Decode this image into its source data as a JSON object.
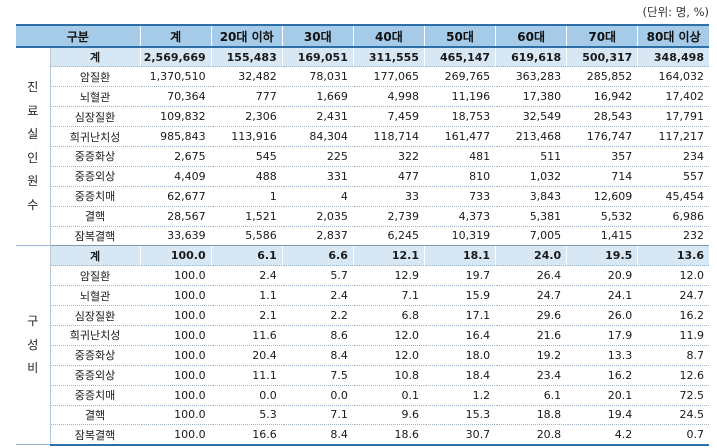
{
  "unit_note": "(단위: 명, %)",
  "headers": [
    "구분",
    "계",
    "20대 이하",
    "30대",
    "40대",
    "50대",
    "60대",
    "70대",
    "80대 이상"
  ],
  "section1": {
    "label_chars": [
      "진",
      "료",
      "실",
      "인",
      "원",
      "수"
    ],
    "rows": [
      {
        "label": "계",
        "values": [
          "2,569,669",
          "155,483",
          "169,051",
          "311,555",
          "465,147",
          "619,618",
          "500,317",
          "348,498"
        ]
      },
      {
        "label": "암질환",
        "values": [
          "1,370,510",
          "32,482",
          "78,031",
          "177,065",
          "269,765",
          "363,283",
          "285,852",
          "164,032"
        ]
      },
      {
        "label": "뇌혈관",
        "values": [
          "70,364",
          "777",
          "1,669",
          "4,998",
          "11,196",
          "17,380",
          "16,942",
          "17,402"
        ]
      },
      {
        "label": "심장질환",
        "values": [
          "109,832",
          "2,306",
          "2,431",
          "7,459",
          "18,753",
          "32,549",
          "28,543",
          "17,791"
        ]
      },
      {
        "label": "희귀난치성",
        "values": [
          "985,843",
          "113,916",
          "84,304",
          "118,714",
          "161,477",
          "213,468",
          "176,747",
          "117,217"
        ]
      },
      {
        "label": "중증화상",
        "values": [
          "2,675",
          "545",
          "225",
          "322",
          "481",
          "511",
          "357",
          "234"
        ]
      },
      {
        "label": "중증외상",
        "values": [
          "4,409",
          "488",
          "331",
          "477",
          "810",
          "1,032",
          "714",
          "557"
        ]
      },
      {
        "label": "중증치매",
        "values": [
          "62,677",
          "1",
          "4",
          "33",
          "733",
          "3,843",
          "12,609",
          "45,454"
        ]
      },
      {
        "label": "결핵",
        "values": [
          "28,567",
          "1,521",
          "2,035",
          "2,739",
          "4,373",
          "5,381",
          "5,532",
          "6,986"
        ]
      },
      {
        "label": "잠복결핵",
        "values": [
          "33,639",
          "5,586",
          "2,837",
          "6,245",
          "10,319",
          "7,005",
          "1,415",
          "232"
        ]
      }
    ]
  },
  "section2": {
    "label_chars": [
      "구",
      "성",
      "비"
    ],
    "rows": [
      {
        "label": "계",
        "values": [
          "100.0",
          "6.1",
          "6.6",
          "12.1",
          "18.1",
          "24.0",
          "19.5",
          "13.6"
        ]
      },
      {
        "label": "암질환",
        "values": [
          "100.0",
          "2.4",
          "5.7",
          "12.9",
          "19.7",
          "26.4",
          "20.9",
          "12.0"
        ]
      },
      {
        "label": "뇌혈관",
        "values": [
          "100.0",
          "1.1",
          "2.4",
          "7.1",
          "15.9",
          "24.7",
          "24.1",
          "24.7"
        ]
      },
      {
        "label": "심장질환",
        "values": [
          "100.0",
          "2.1",
          "2.2",
          "6.8",
          "17.1",
          "29.6",
          "26.0",
          "16.2"
        ]
      },
      {
        "label": "희귀난치성",
        "values": [
          "100.0",
          "11.6",
          "8.6",
          "12.0",
          "16.4",
          "21.6",
          "17.9",
          "11.9"
        ]
      },
      {
        "label": "중증화상",
        "values": [
          "100.0",
          "20.4",
          "8.4",
          "12.0",
          "18.0",
          "19.2",
          "13.3",
          "8.7"
        ]
      },
      {
        "label": "중증외상",
        "values": [
          "100.0",
          "11.1",
          "7.5",
          "10.8",
          "18.4",
          "23.4",
          "16.2",
          "12.6"
        ]
      },
      {
        "label": "중증치매",
        "values": [
          "100.0",
          "0.0",
          "0.0",
          "0.1",
          "1.2",
          "6.1",
          "20.1",
          "72.5"
        ]
      },
      {
        "label": "결핵",
        "values": [
          "100.0",
          "5.3",
          "7.1",
          "9.6",
          "15.3",
          "18.8",
          "19.4",
          "24.5"
        ]
      },
      {
        "label": "잠복결핵",
        "values": [
          "100.0",
          "16.6",
          "8.4",
          "18.6",
          "30.7",
          "20.8",
          "4.2",
          "0.7"
        ]
      }
    ]
  }
}
